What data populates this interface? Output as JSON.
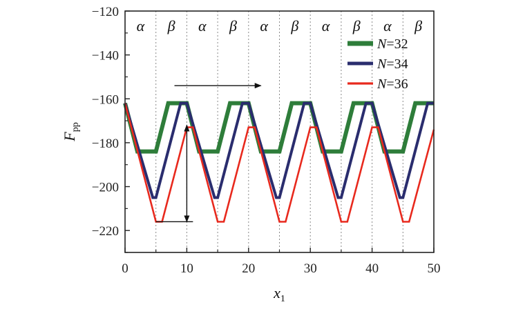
{
  "chart_data": {
    "type": "line",
    "xlabel": "x",
    "xlabel_sub": "1",
    "ylabel": "F",
    "ylabel_sub": "pp",
    "xlim": [
      0,
      50
    ],
    "ylim": [
      -230,
      -120
    ],
    "xticks": [
      0,
      10,
      20,
      30,
      40,
      50
    ],
    "yticks": [
      -220,
      -200,
      -180,
      -160,
      -140,
      -120
    ],
    "xtick_labels": [
      "0",
      "10",
      "20",
      "30",
      "40",
      "50"
    ],
    "ytick_labels": [
      "−220",
      "−200",
      "−180",
      "−160",
      "−140",
      "−120"
    ],
    "region_boundaries": [
      5,
      10,
      15,
      20,
      25,
      30,
      35,
      40,
      45
    ],
    "region_labels": [
      "α",
      "β",
      "α",
      "β",
      "α",
      "β",
      "α",
      "β",
      "α",
      "β"
    ],
    "legend_position": "top-right",
    "series": [
      {
        "name_prefix": "N",
        "name_suffix": "=32",
        "color": "#2e7d3a",
        "x": [
          0,
          2,
          5,
          7,
          9,
          10,
          12,
          15,
          17,
          19,
          20,
          22,
          25,
          27,
          29,
          30,
          32,
          35,
          37,
          39,
          40,
          42,
          45,
          47,
          49,
          50
        ],
        "y": [
          -162,
          -184,
          -184,
          -162,
          -162,
          -162,
          -184,
          -184,
          -162,
          -162,
          -162,
          -184,
          -184,
          -162,
          -162,
          -162,
          -184,
          -184,
          -162,
          -162,
          -162,
          -184,
          -184,
          -162,
          -162,
          -162
        ]
      },
      {
        "name_prefix": "N",
        "name_suffix": "=34",
        "color": "#2a2d6e",
        "x": [
          0,
          4.5,
          5,
          9,
          10,
          14.5,
          15,
          19,
          20,
          24.5,
          25,
          29,
          30,
          34.5,
          35,
          39,
          40,
          44.5,
          45,
          49,
          50
        ],
        "y": [
          -162,
          -205,
          -205,
          -162,
          -162,
          -205,
          -205,
          -162,
          -162,
          -205,
          -205,
          -162,
          -162,
          -205,
          -205,
          -162,
          -162,
          -205,
          -205,
          -162,
          -162
        ]
      },
      {
        "name_prefix": "N",
        "name_suffix": "=36",
        "color": "#e8291d",
        "x": [
          0,
          5,
          6,
          10,
          11,
          15,
          16,
          20,
          21,
          25,
          26,
          30,
          31,
          35,
          36,
          40,
          41,
          45,
          46,
          50
        ],
        "y": [
          -162,
          -216,
          -216,
          -173,
          -173,
          -216,
          -216,
          -173,
          -173,
          -216,
          -216,
          -173,
          -173,
          -216,
          -216,
          -173,
          -173,
          -216,
          -216,
          -174
        ]
      }
    ],
    "annotations": [
      {
        "kind": "arrow-right",
        "from": [
          8,
          -154
        ],
        "to": [
          22,
          -154
        ]
      },
      {
        "kind": "double-arrow-vertical",
        "x": 10,
        "from": -216,
        "to": -172
      },
      {
        "kind": "baseline",
        "x": [
          5,
          11
        ],
        "y": -216
      }
    ]
  }
}
